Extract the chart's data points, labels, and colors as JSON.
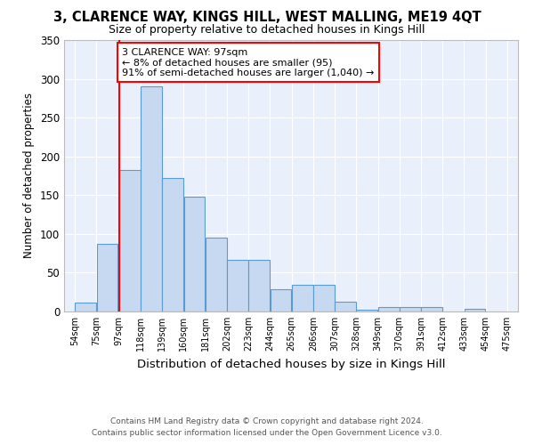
{
  "title": "3, CLARENCE WAY, KINGS HILL, WEST MALLING, ME19 4QT",
  "subtitle": "Size of property relative to detached houses in Kings Hill",
  "xlabel": "Distribution of detached houses by size in Kings Hill",
  "ylabel": "Number of detached properties",
  "bar_color": "#c6d9f0",
  "bar_edge_color": "#5b9bd5",
  "bins": [
    54,
    75,
    97,
    118,
    139,
    160,
    181,
    202,
    223,
    244,
    265,
    286,
    307,
    328,
    349,
    370,
    391,
    412,
    433,
    454,
    475
  ],
  "counts": [
    12,
    87,
    183,
    290,
    172,
    148,
    95,
    67,
    67,
    29,
    35,
    35,
    13,
    2,
    6,
    6,
    6,
    0,
    4,
    0
  ],
  "tick_labels": [
    "54sqm",
    "75sqm",
    "97sqm",
    "118sqm",
    "139sqm",
    "160sqm",
    "181sqm",
    "202sqm",
    "223sqm",
    "244sqm",
    "265sqm",
    "286sqm",
    "307sqm",
    "328sqm",
    "349sqm",
    "370sqm",
    "391sqm",
    "412sqm",
    "433sqm",
    "454sqm",
    "475sqm"
  ],
  "property_size": 97,
  "annotation_text": "3 CLARENCE WAY: 97sqm\n← 8% of detached houses are smaller (95)\n91% of semi-detached houses are larger (1,040) →",
  "annotation_box_color": "white",
  "annotation_box_edge": "red",
  "vline_color": "red",
  "ylim": [
    0,
    350
  ],
  "yticks": [
    0,
    50,
    100,
    150,
    200,
    250,
    300,
    350
  ],
  "background_color": "#eaf0fb",
  "grid_color": "white",
  "footer_line1": "Contains HM Land Registry data © Crown copyright and database right 2024.",
  "footer_line2": "Contains public sector information licensed under the Open Government Licence v3.0."
}
